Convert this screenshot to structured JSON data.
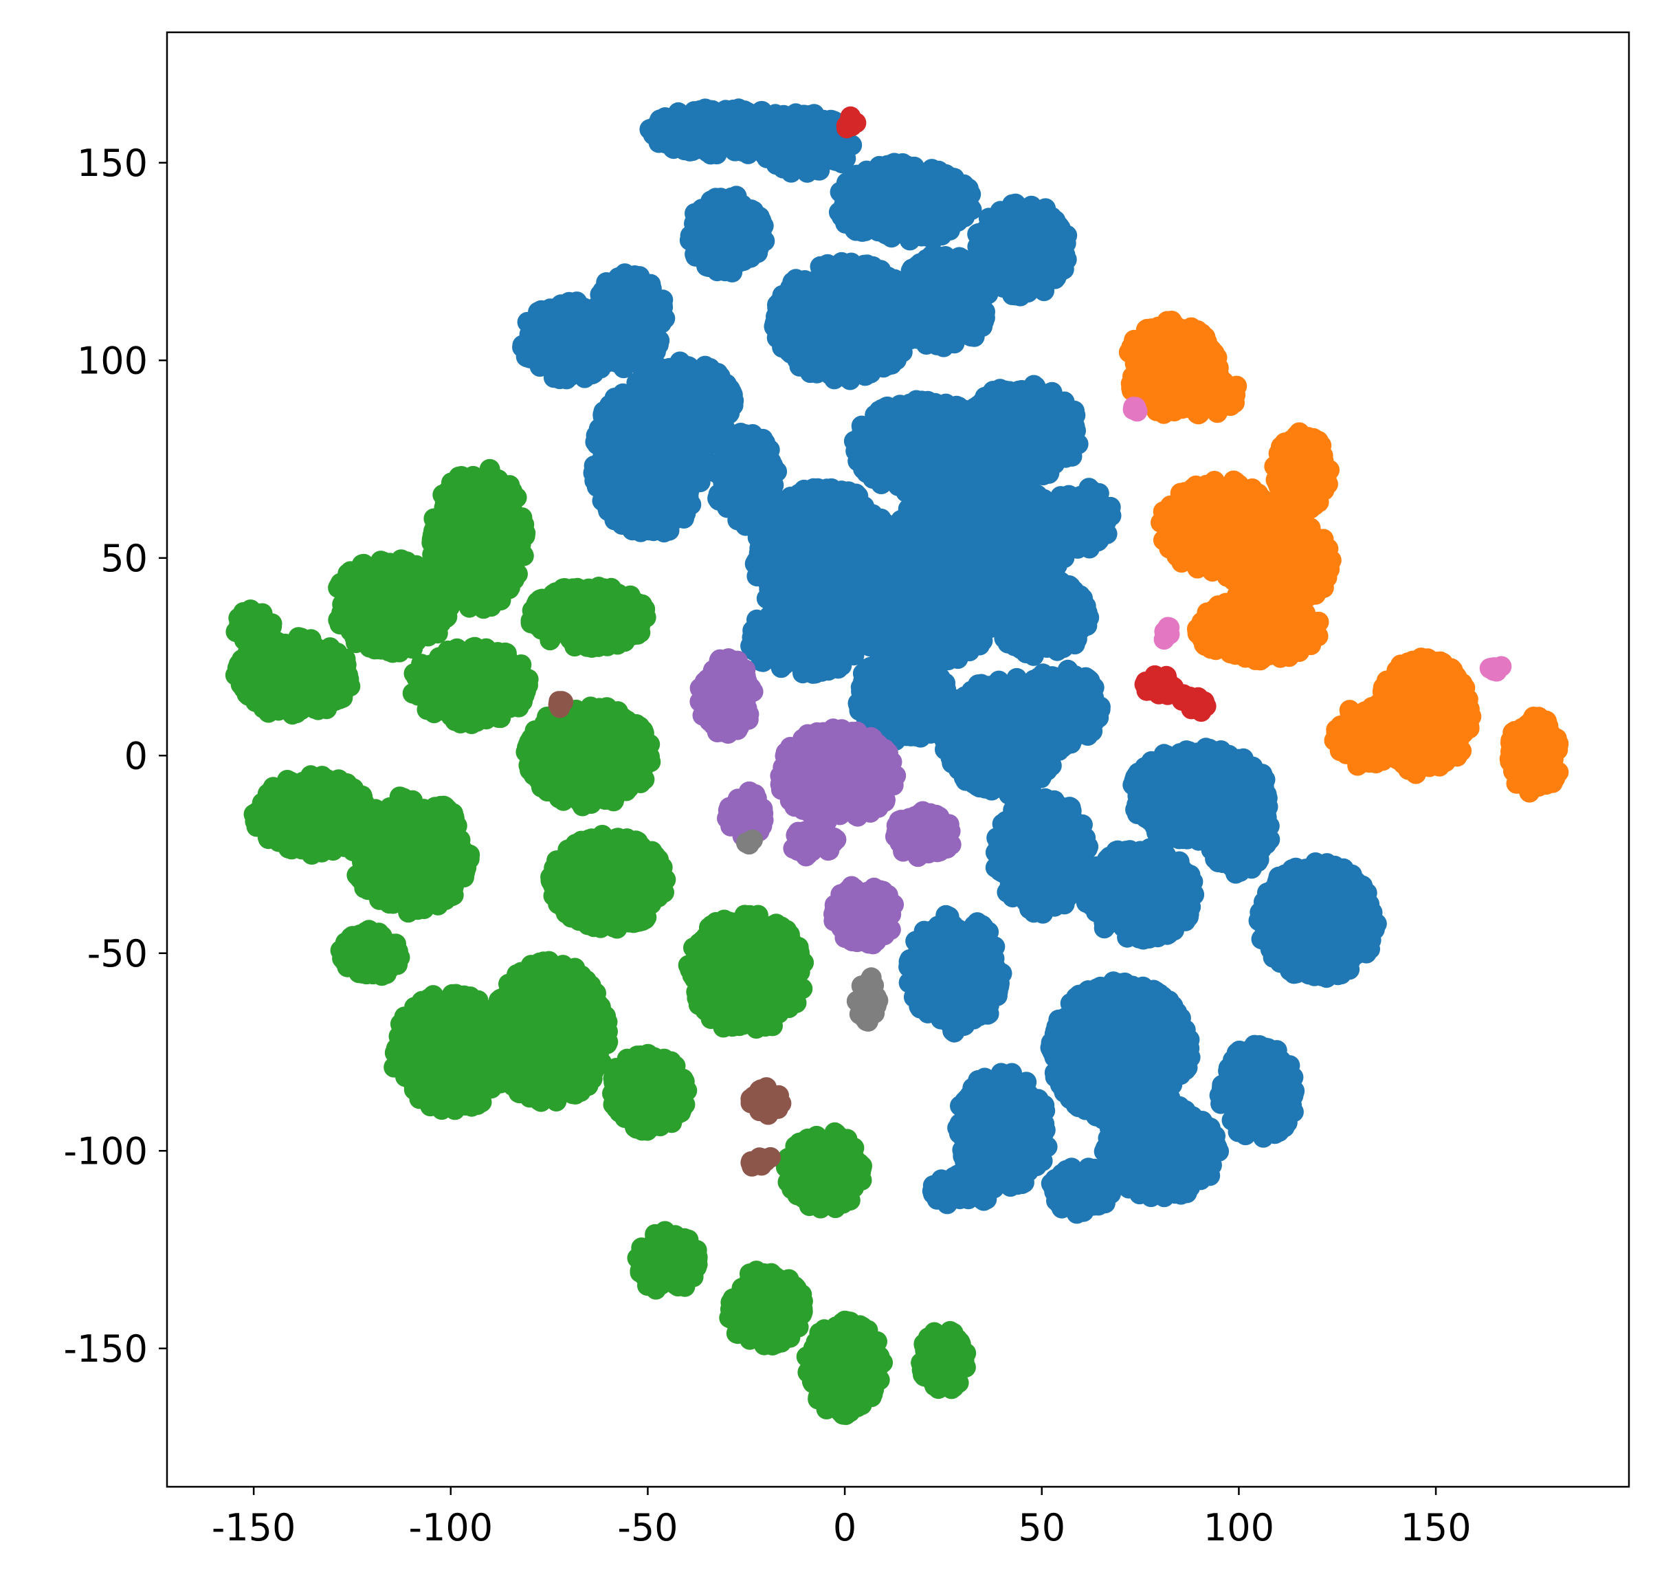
{
  "chart_data": {
    "type": "scatter",
    "title": "",
    "xlabel": "",
    "ylabel": "",
    "xlim": [
      -172,
      199
    ],
    "ylim": [
      -185,
      183
    ],
    "grid": false,
    "legend": "none",
    "xticks": [
      -150,
      -100,
      -50,
      0,
      50,
      100,
      150
    ],
    "yticks": [
      150,
      100,
      50,
      0,
      -50,
      -100,
      -150
    ],
    "xtick_labels": [
      "-150",
      "-100",
      "-50",
      "0",
      "50",
      "100",
      "150"
    ],
    "ytick_labels": [
      "150",
      "100",
      "50",
      "0",
      "-50",
      "-100",
      "-150"
    ],
    "series": [
      {
        "color": "#1f77b4",
        "clusters": [
          {
            "cx": -30,
            "cy": 158,
            "rx": 20,
            "ry": 6
          },
          {
            "cx": -10,
            "cy": 155,
            "rx": 12,
            "ry": 8
          },
          {
            "cx": -30,
            "cy": 132,
            "rx": 10,
            "ry": 10
          },
          {
            "cx": 15,
            "cy": 140,
            "rx": 18,
            "ry": 10
          },
          {
            "cx": 45,
            "cy": 128,
            "rx": 12,
            "ry": 12
          },
          {
            "cx": 0,
            "cy": 110,
            "rx": 18,
            "ry": 15
          },
          {
            "cx": 25,
            "cy": 115,
            "rx": 12,
            "ry": 12
          },
          {
            "cx": -70,
            "cy": 105,
            "rx": 12,
            "ry": 10
          },
          {
            "cx": -55,
            "cy": 110,
            "rx": 10,
            "ry": 12
          },
          {
            "cx": -50,
            "cy": 75,
            "rx": 14,
            "ry": 20
          },
          {
            "cx": -40,
            "cy": 88,
            "rx": 12,
            "ry": 12
          },
          {
            "cx": -25,
            "cy": 70,
            "rx": 8,
            "ry": 12
          },
          {
            "cx": 20,
            "cy": 78,
            "rx": 18,
            "ry": 12
          },
          {
            "cx": 45,
            "cy": 82,
            "rx": 15,
            "ry": 12
          },
          {
            "cx": -5,
            "cy": 50,
            "rx": 18,
            "ry": 18
          },
          {
            "cx": 35,
            "cy": 55,
            "rx": 22,
            "ry": 15
          },
          {
            "cx": 60,
            "cy": 60,
            "rx": 8,
            "ry": 8
          },
          {
            "cx": -10,
            "cy": 30,
            "rx": 15,
            "ry": 10
          },
          {
            "cx": 20,
            "cy": 35,
            "rx": 18,
            "ry": 12
          },
          {
            "cx": 50,
            "cy": 35,
            "rx": 12,
            "ry": 10
          },
          {
            "cx": 15,
            "cy": 15,
            "rx": 12,
            "ry": 12
          },
          {
            "cx": 40,
            "cy": 5,
            "rx": 15,
            "ry": 15
          },
          {
            "cx": 55,
            "cy": 12,
            "rx": 10,
            "ry": 10
          },
          {
            "cx": 90,
            "cy": -10,
            "rx": 18,
            "ry": 12
          },
          {
            "cx": 50,
            "cy": -25,
            "rx": 12,
            "ry": 15
          },
          {
            "cx": 75,
            "cy": -35,
            "rx": 14,
            "ry": 12
          },
          {
            "cx": 100,
            "cy": -20,
            "rx": 8,
            "ry": 10
          },
          {
            "cx": 120,
            "cy": -42,
            "rx": 15,
            "ry": 15
          },
          {
            "cx": 28,
            "cy": -55,
            "rx": 12,
            "ry": 15
          },
          {
            "cx": 70,
            "cy": -75,
            "rx": 18,
            "ry": 18
          },
          {
            "cx": 40,
            "cy": -95,
            "rx": 12,
            "ry": 15
          },
          {
            "cx": 80,
            "cy": -100,
            "rx": 15,
            "ry": 12
          },
          {
            "cx": 105,
            "cy": -85,
            "rx": 10,
            "ry": 12
          },
          {
            "cx": 60,
            "cy": -110,
            "rx": 8,
            "ry": 6
          },
          {
            "cx": 30,
            "cy": -110,
            "rx": 8,
            "ry": 4
          }
        ]
      },
      {
        "color": "#ff7f0e",
        "clusters": [
          {
            "cx": 83,
            "cy": 98,
            "rx": 12,
            "ry": 12
          },
          {
            "cx": 92,
            "cy": 92,
            "rx": 8,
            "ry": 6
          },
          {
            "cx": 116,
            "cy": 72,
            "rx": 7,
            "ry": 10
          },
          {
            "cx": 95,
            "cy": 58,
            "rx": 15,
            "ry": 12
          },
          {
            "cx": 110,
            "cy": 48,
            "rx": 14,
            "ry": 12
          },
          {
            "cx": 105,
            "cy": 32,
            "rx": 16,
            "ry": 8
          },
          {
            "cx": 147,
            "cy": 10,
            "rx": 12,
            "ry": 15
          },
          {
            "cx": 132,
            "cy": 5,
            "rx": 8,
            "ry": 8
          },
          {
            "cx": 175,
            "cy": 0,
            "rx": 7,
            "ry": 10
          }
        ]
      },
      {
        "color": "#2ca02c",
        "clusters": [
          {
            "cx": -93,
            "cy": 55,
            "rx": 12,
            "ry": 18
          },
          {
            "cx": -115,
            "cy": 38,
            "rx": 15,
            "ry": 12
          },
          {
            "cx": -140,
            "cy": 20,
            "rx": 15,
            "ry": 10
          },
          {
            "cx": -150,
            "cy": 32,
            "rx": 5,
            "ry": 5
          },
          {
            "cx": -95,
            "cy": 18,
            "rx": 15,
            "ry": 10
          },
          {
            "cx": -65,
            "cy": 35,
            "rx": 15,
            "ry": 8
          },
          {
            "cx": -65,
            "cy": 0,
            "rx": 16,
            "ry": 13
          },
          {
            "cx": -135,
            "cy": -15,
            "rx": 15,
            "ry": 10
          },
          {
            "cx": -110,
            "cy": -25,
            "rx": 15,
            "ry": 15
          },
          {
            "cx": -60,
            "cy": -32,
            "rx": 15,
            "ry": 12
          },
          {
            "cx": -25,
            "cy": -55,
            "rx": 15,
            "ry": 15
          },
          {
            "cx": -100,
            "cy": -75,
            "rx": 15,
            "ry": 15
          },
          {
            "cx": -75,
            "cy": -70,
            "rx": 15,
            "ry": 18
          },
          {
            "cx": -50,
            "cy": -85,
            "rx": 10,
            "ry": 10
          },
          {
            "cx": -120,
            "cy": -50,
            "rx": 8,
            "ry": 6
          },
          {
            "cx": -5,
            "cy": -105,
            "rx": 10,
            "ry": 10
          },
          {
            "cx": -45,
            "cy": -128,
            "rx": 8,
            "ry": 8
          },
          {
            "cx": -20,
            "cy": -140,
            "rx": 10,
            "ry": 10
          },
          {
            "cx": 0,
            "cy": -155,
            "rx": 10,
            "ry": 12
          },
          {
            "cx": 25,
            "cy": -153,
            "rx": 6,
            "ry": 8
          }
        ]
      },
      {
        "color": "#d62728",
        "clusters": [
          {
            "cx": 2,
            "cy": 160,
            "rx": 2,
            "ry": 2
          },
          {
            "cx": 80,
            "cy": 18,
            "rx": 4,
            "ry": 3
          },
          {
            "cx": 88,
            "cy": 13,
            "rx": 4,
            "ry": 3
          }
        ]
      },
      {
        "color": "#9467bd",
        "clusters": [
          {
            "cx": -30,
            "cy": 15,
            "rx": 7,
            "ry": 10
          },
          {
            "cx": -2,
            "cy": -5,
            "rx": 15,
            "ry": 12
          },
          {
            "cx": -25,
            "cy": -15,
            "rx": 5,
            "ry": 6
          },
          {
            "cx": 20,
            "cy": -20,
            "rx": 8,
            "ry": 6
          },
          {
            "cx": -8,
            "cy": -22,
            "rx": 6,
            "ry": 4
          },
          {
            "cx": 5,
            "cy": -40,
            "rx": 8,
            "ry": 8
          }
        ]
      },
      {
        "color": "#8c564b",
        "clusters": [
          {
            "cx": -72,
            "cy": 13,
            "rx": 1,
            "ry": 1
          },
          {
            "cx": -20,
            "cy": -87,
            "rx": 4,
            "ry": 4
          },
          {
            "cx": -21,
            "cy": -103,
            "rx": 3,
            "ry": 2
          }
        ]
      },
      {
        "color": "#e377c2",
        "clusters": [
          {
            "cx": 74,
            "cy": 88,
            "rx": 1,
            "ry": 1
          },
          {
            "cx": 82,
            "cy": 31,
            "rx": 2,
            "ry": 2
          },
          {
            "cx": 165,
            "cy": 22,
            "rx": 2,
            "ry": 1
          }
        ]
      },
      {
        "color": "#7f7f7f",
        "clusters": [
          {
            "cx": -24,
            "cy": -22,
            "rx": 1,
            "ry": 1
          },
          {
            "cx": 6,
            "cy": -62,
            "rx": 3,
            "ry": 6
          }
        ]
      }
    ]
  }
}
